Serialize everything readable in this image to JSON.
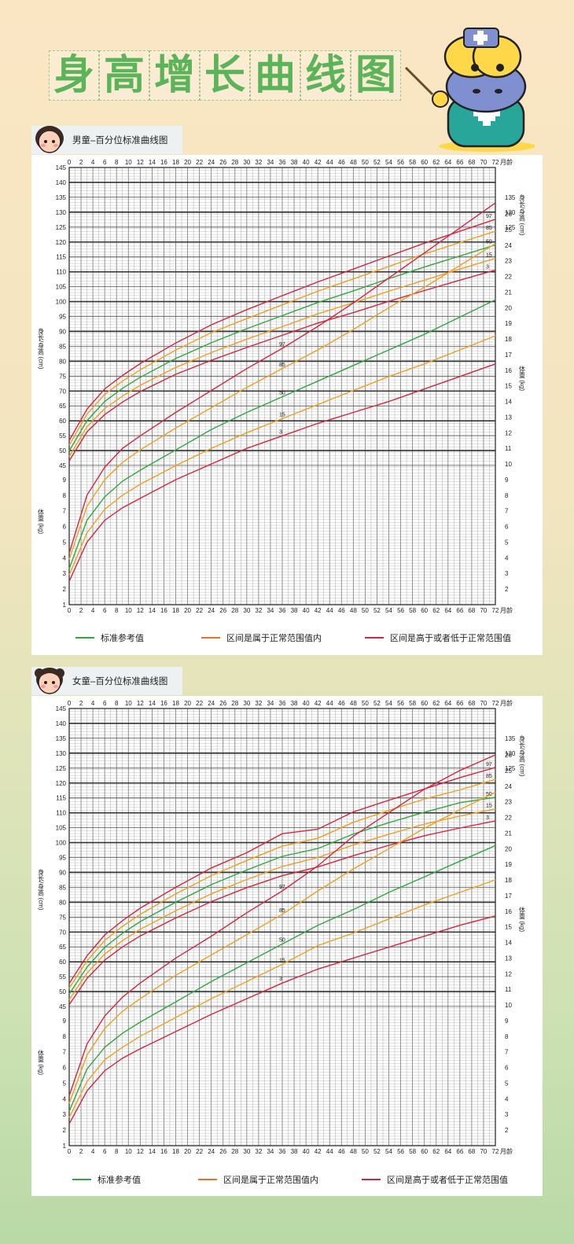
{
  "title": {
    "chars": [
      "身",
      "高",
      "增",
      "长",
      "曲",
      "线",
      "图"
    ]
  },
  "colors": {
    "ref": "#2eaa3c",
    "normal": "#f0a020",
    "abnormal": "#d6263f",
    "title": "#5bb45a"
  },
  "boy": {
    "tab_label": "男童–百分位标准曲线图",
    "legend": [
      "标准参考值",
      "区间是属于正常范围值内",
      "区间是高于或者低于正常范围值"
    ]
  },
  "girl": {
    "tab_label": "女童–百分位标准曲线图",
    "legend": [
      "标准参考值",
      "区间是属于正常范围值内",
      "区间是高于或者低于正常范围值"
    ]
  },
  "chart_data": [
    {
      "type": "line",
      "title": "男童–百分位标准曲线图",
      "xlabel": "月龄",
      "x_ticks": [
        0,
        2,
        4,
        6,
        8,
        10,
        12,
        14,
        16,
        18,
        20,
        22,
        24,
        26,
        28,
        30,
        32,
        34,
        36,
        38,
        40,
        42,
        44,
        46,
        48,
        50,
        52,
        54,
        56,
        58,
        60,
        62,
        64,
        66,
        68,
        70,
        72
      ],
      "xlim": [
        0,
        72
      ],
      "height_axis": {
        "label": "身长/身高 (cm)",
        "left_ticks": [
          45,
          50,
          55,
          60,
          65,
          70,
          75,
          80,
          85,
          90,
          95,
          100,
          105,
          110,
          115,
          120,
          125,
          130,
          135,
          140,
          145
        ],
        "right_ticks": [
          125,
          130,
          135
        ],
        "ylim": [
          45,
          145
        ]
      },
      "weight_axis": {
        "label": "体重 (kg)",
        "left_ticks": [
          1,
          2,
          3,
          4,
          5,
          6,
          7,
          8,
          9
        ],
        "right_ticks": [
          2,
          3,
          4,
          5,
          6,
          7,
          8,
          9,
          10,
          11,
          12,
          13,
          14,
          15,
          16,
          17,
          18,
          19,
          20,
          21,
          22,
          23,
          24,
          25,
          26
        ],
        "ylim": [
          1,
          26
        ]
      },
      "x": [
        0,
        3,
        6,
        9,
        12,
        18,
        24,
        30,
        36,
        42,
        48,
        54,
        60,
        66,
        72
      ],
      "height_series": [
        {
          "name": "97",
          "values": [
            53.4,
            63.9,
            70.7,
            75.2,
            79.2,
            86.1,
            92.2,
            97.3,
            102.0,
            106.6,
            110.9,
            115.3,
            119.6,
            123.6,
            127.6
          ]
        },
        {
          "name": "85",
          "values": [
            51.8,
            62.2,
            68.9,
            73.3,
            77.1,
            83.7,
            89.6,
            94.3,
            98.9,
            103.5,
            107.6,
            111.8,
            116.0,
            119.8,
            123.6
          ]
        },
        {
          "name": "50",
          "values": [
            49.9,
            60.0,
            66.5,
            70.9,
            74.6,
            80.9,
            86.2,
            90.9,
            95.3,
            99.7,
            103.6,
            107.7,
            111.6,
            115.3,
            119.0
          ]
        },
        {
          "name": "15",
          "values": [
            48.0,
            58.0,
            64.1,
            68.3,
            71.9,
            77.9,
            82.9,
            87.4,
            91.6,
            95.9,
            99.6,
            103.5,
            107.2,
            110.9,
            114.5
          ]
        },
        {
          "name": "3",
          "values": [
            46.5,
            56.3,
            62.1,
            66.3,
            69.8,
            75.6,
            80.3,
            84.6,
            88.7,
            92.8,
            96.3,
            100.1,
            103.7,
            107.2,
            110.6
          ]
        }
      ],
      "weight_series": [
        {
          "name": "97",
          "values": [
            4.3,
            8.0,
            9.8,
            11.0,
            11.8,
            13.3,
            14.7,
            16.1,
            17.4,
            18.8,
            20.3,
            21.9,
            23.5,
            25.1,
            26.7
          ]
        },
        {
          "name": "85",
          "values": [
            3.9,
            7.3,
            9.0,
            10.1,
            10.9,
            12.3,
            13.6,
            14.9,
            16.1,
            17.3,
            18.6,
            20.0,
            21.3,
            22.7,
            24.1
          ]
        },
        {
          "name": "50",
          "values": [
            3.3,
            6.4,
            7.9,
            8.9,
            9.6,
            10.9,
            12.2,
            13.3,
            14.3,
            15.3,
            16.3,
            17.3,
            18.3,
            19.4,
            20.5
          ]
        },
        {
          "name": "15",
          "values": [
            2.9,
            5.6,
            7.1,
            8.0,
            8.7,
            9.9,
            11.0,
            12.0,
            12.9,
            13.8,
            14.7,
            15.6,
            16.4,
            17.3,
            18.2
          ]
        },
        {
          "name": "3",
          "values": [
            2.5,
            5.0,
            6.4,
            7.2,
            7.8,
            9.0,
            10.0,
            11.0,
            11.8,
            12.6,
            13.3,
            14.0,
            14.8,
            15.6,
            16.4
          ]
        }
      ],
      "legend": [
        "标准参考值",
        "区间是属于正常范围值内",
        "区间是高于或者低于正常范围值"
      ]
    },
    {
      "type": "line",
      "title": "女童–百分位标准曲线图",
      "xlabel": "月龄",
      "x_ticks": [
        0,
        2,
        4,
        6,
        8,
        10,
        12,
        14,
        16,
        18,
        20,
        22,
        24,
        26,
        28,
        30,
        32,
        34,
        36,
        38,
        40,
        42,
        44,
        46,
        48,
        50,
        52,
        54,
        56,
        58,
        60,
        62,
        64,
        66,
        68,
        70,
        72
      ],
      "xlim": [
        0,
        72
      ],
      "height_axis": {
        "label": "身长/身高 (cm)",
        "left_ticks": [
          45,
          50,
          55,
          60,
          65,
          70,
          75,
          80,
          85,
          90,
          95,
          100,
          105,
          110,
          115,
          120,
          125,
          130,
          135,
          140,
          145
        ],
        "right_ticks": [
          125,
          130,
          135
        ],
        "ylim": [
          45,
          145
        ]
      },
      "weight_axis": {
        "label": "体重 (kg)",
        "left_ticks": [
          1,
          2,
          3,
          4,
          5,
          6,
          7,
          8,
          9
        ],
        "right_ticks": [
          2,
          3,
          4,
          5,
          6,
          7,
          8,
          9,
          10,
          11,
          12,
          13,
          14,
          15,
          16,
          17,
          18,
          19,
          20,
          21,
          22,
          23,
          24,
          25,
          26
        ],
        "ylim": [
          1,
          26
        ]
      },
      "x": [
        0,
        3,
        6,
        9,
        12,
        18,
        24,
        30,
        36,
        42,
        48,
        54,
        60,
        66,
        72
      ],
      "height_series": [
        {
          "name": "97",
          "values": [
            52.7,
            62.0,
            69.0,
            73.8,
            78.0,
            85.0,
            91.5,
            96.6,
            103.0,
            104.5,
            110.3,
            114.2,
            118.0,
            121.8,
            125.2
          ]
        },
        {
          "name": "85",
          "values": [
            51.1,
            60.3,
            67.2,
            71.9,
            75.9,
            82.8,
            88.9,
            94.0,
            98.8,
            101.5,
            106.8,
            110.8,
            114.6,
            117.7,
            121.2
          ]
        },
        {
          "name": "50",
          "values": [
            49.2,
            58.2,
            64.9,
            69.6,
            73.5,
            80.0,
            85.9,
            90.8,
            95.4,
            98.0,
            102.9,
            106.7,
            110.2,
            113.4,
            115.2
          ]
        },
        {
          "name": "15",
          "values": [
            47.3,
            56.2,
            62.6,
            67.1,
            70.9,
            77.1,
            82.8,
            87.6,
            92.0,
            95.0,
            99.2,
            102.8,
            106.2,
            108.9,
            111.3
          ]
        },
        {
          "name": "3",
          "values": [
            45.6,
            54.4,
            60.6,
            65.0,
            68.7,
            74.7,
            80.2,
            84.9,
            88.9,
            91.8,
            95.6,
            99.1,
            102.3,
            104.9,
            107.3
          ]
        }
      ],
      "weight_series": [
        {
          "name": "97",
          "values": [
            4.2,
            7.5,
            9.3,
            10.5,
            11.4,
            13.0,
            14.4,
            15.9,
            17.3,
            18.9,
            20.8,
            22.3,
            23.8,
            25.0,
            26.0
          ]
        },
        {
          "name": "85",
          "values": [
            3.7,
            6.8,
            8.5,
            9.6,
            10.4,
            11.9,
            13.2,
            14.5,
            15.8,
            17.3,
            18.7,
            20.0,
            21.3,
            22.5,
            23.6
          ]
        },
        {
          "name": "50",
          "values": [
            3.2,
            5.9,
            7.3,
            8.2,
            8.9,
            10.2,
            11.5,
            12.7,
            13.9,
            15.1,
            16.1,
            17.2,
            18.2,
            19.2,
            20.2
          ]
        },
        {
          "name": "15",
          "values": [
            2.8,
            5.1,
            6.5,
            7.3,
            8.0,
            9.2,
            10.4,
            11.5,
            12.6,
            13.8,
            14.6,
            15.5,
            16.4,
            17.2,
            18.0
          ]
        },
        {
          "name": "3",
          "values": [
            2.4,
            4.5,
            5.8,
            6.6,
            7.2,
            8.3,
            9.4,
            10.4,
            11.4,
            12.3,
            13.0,
            13.7,
            14.4,
            15.1,
            15.7
          ]
        }
      ],
      "legend": [
        "标准参考值",
        "区间是属于正常范围值内",
        "区间是高于或者低于正常范围值"
      ]
    }
  ]
}
